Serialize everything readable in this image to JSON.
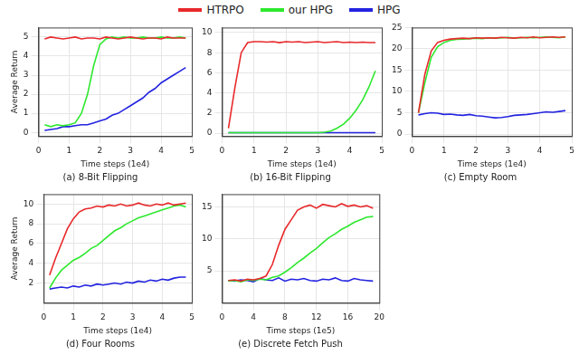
{
  "chart_data": [
    {
      "type": "line",
      "title": "(a) 8-Bit Flipping",
      "x_label": "Time steps (1e4)",
      "y_label": "Average Return",
      "legend": "top",
      "grid": true,
      "xlim": [
        0,
        5
      ],
      "xticks": [
        0,
        1,
        2,
        3,
        4,
        5
      ],
      "ylim": [
        -0.2,
        5.5
      ],
      "yticks": [
        0,
        1,
        2,
        3,
        4,
        5
      ],
      "x": [
        0.2,
        0.4,
        0.6,
        0.8,
        1.0,
        1.2,
        1.4,
        1.6,
        1.8,
        2.0,
        2.2,
        2.4,
        2.6,
        2.8,
        3.0,
        3.2,
        3.4,
        3.6,
        3.8,
        4.0,
        4.2,
        4.4,
        4.6,
        4.8
      ],
      "series": [
        {
          "name": "HTRPO",
          "color": "#e8292b",
          "values": [
            4.9,
            5.0,
            4.95,
            4.9,
            4.95,
            5.0,
            4.9,
            4.95,
            4.95,
            4.9,
            5.0,
            4.95,
            4.9,
            4.95,
            5.0,
            4.95,
            4.9,
            4.95,
            4.95,
            4.9,
            5.0,
            4.95,
            4.95,
            4.95
          ]
        },
        {
          "name": "our HPG",
          "color": "#2ee82e",
          "values": [
            0.4,
            0.3,
            0.4,
            0.35,
            0.4,
            0.5,
            1.0,
            2.0,
            3.5,
            4.6,
            4.9,
            5.0,
            4.95,
            5.0,
            4.95,
            4.95,
            5.0,
            4.95,
            4.95,
            5.0,
            4.95,
            4.95,
            5.0,
            4.95
          ]
        },
        {
          "name": "HPG",
          "color": "#2323e0",
          "values": [
            0.1,
            0.15,
            0.2,
            0.3,
            0.3,
            0.35,
            0.4,
            0.4,
            0.5,
            0.6,
            0.7,
            0.9,
            1.0,
            1.2,
            1.4,
            1.6,
            1.8,
            2.1,
            2.3,
            2.6,
            2.8,
            3.0,
            3.2,
            3.4
          ]
        }
      ]
    },
    {
      "type": "line",
      "title": "(b) 16-Bit Flipping",
      "x_label": "Time steps (1e4)",
      "grid": true,
      "xlim": [
        0,
        5
      ],
      "xticks": [
        0,
        1,
        2,
        3,
        4,
        5
      ],
      "ylim": [
        -0.3,
        10.5
      ],
      "yticks": [
        0,
        2,
        4,
        6,
        8,
        10
      ],
      "x": [
        0.2,
        0.4,
        0.6,
        0.8,
        1.0,
        1.2,
        1.4,
        1.6,
        1.8,
        2.0,
        2.2,
        2.4,
        2.6,
        2.8,
        3.0,
        3.2,
        3.4,
        3.6,
        3.8,
        4.0,
        4.2,
        4.4,
        4.6,
        4.8
      ],
      "series": [
        {
          "name": "HTRPO",
          "color": "#e8292b",
          "values": [
            0.5,
            4.5,
            8.0,
            9.0,
            9.1,
            9.1,
            9.05,
            9.1,
            9.0,
            9.1,
            9.05,
            9.1,
            9.0,
            9.05,
            9.1,
            9.0,
            9.05,
            9.1,
            9.0,
            9.05,
            9.0,
            9.05,
            9.0,
            9.0
          ]
        },
        {
          "name": "our HPG",
          "color": "#2ee82e",
          "values": [
            0.05,
            0.05,
            0.05,
            0.05,
            0.05,
            0.05,
            0.05,
            0.05,
            0.05,
            0.05,
            0.05,
            0.05,
            0.05,
            0.05,
            0.05,
            0.1,
            0.2,
            0.5,
            0.9,
            1.5,
            2.3,
            3.3,
            4.6,
            6.2
          ]
        },
        {
          "name": "HPG",
          "color": "#2323e0",
          "values": [
            0.05,
            0.05,
            0.05,
            0.05,
            0.05,
            0.05,
            0.05,
            0.05,
            0.05,
            0.05,
            0.05,
            0.05,
            0.05,
            0.05,
            0.05,
            0.05,
            0.05,
            0.05,
            0.05,
            0.05,
            0.05,
            0.05,
            0.05,
            0.05
          ]
        }
      ]
    },
    {
      "type": "line",
      "title": "(c) Empty Room",
      "x_label": "Time steps (1e4)",
      "grid": true,
      "xlim": [
        0,
        5
      ],
      "xticks": [
        0,
        1,
        2,
        3,
        4,
        5
      ],
      "ylim": [
        -0.5,
        25
      ],
      "yticks": [
        0,
        5,
        10,
        15,
        20,
        25
      ],
      "x": [
        0.2,
        0.4,
        0.6,
        0.8,
        1.0,
        1.2,
        1.4,
        1.6,
        1.8,
        2.0,
        2.2,
        2.4,
        2.6,
        2.8,
        3.0,
        3.2,
        3.4,
        3.6,
        3.8,
        4.0,
        4.2,
        4.4,
        4.6,
        4.8
      ],
      "series": [
        {
          "name": "HTRPO",
          "color": "#e8292b",
          "values": [
            5,
            14,
            19.5,
            21.5,
            22,
            22.3,
            22.4,
            22.5,
            22.4,
            22.6,
            22.5,
            22.6,
            22.5,
            22.7,
            22.6,
            22.5,
            22.7,
            22.6,
            22.8,
            22.6,
            22.7,
            22.8,
            22.7,
            22.8
          ]
        },
        {
          "name": "our HPG",
          "color": "#2ee82e",
          "values": [
            5,
            12,
            18,
            20.5,
            21.5,
            22,
            22.2,
            22.3,
            22.4,
            22.5,
            22.4,
            22.6,
            22.5,
            22.6,
            22.7,
            22.5,
            22.6,
            22.7,
            22.6,
            22.7,
            22.8,
            22.7,
            22.6,
            22.8
          ]
        },
        {
          "name": "HPG",
          "color": "#2323e0",
          "values": [
            4.5,
            4.8,
            5.0,
            4.9,
            4.6,
            4.7,
            4.5,
            4.4,
            4.6,
            4.3,
            4.2,
            4.0,
            3.8,
            3.9,
            4.1,
            4.4,
            4.5,
            4.6,
            4.8,
            5.0,
            5.2,
            5.1,
            5.3,
            5.5
          ]
        }
      ]
    },
    {
      "type": "line",
      "title": "(d) Four Rooms",
      "x_label": "Time steps (1e4)",
      "y_label": "Average Return",
      "grid": true,
      "xlim": [
        0,
        5
      ],
      "xticks": [
        0,
        1,
        2,
        3,
        4,
        5
      ],
      "ylim": [
        0,
        11
      ],
      "yticks": [
        2,
        4,
        6,
        8,
        10
      ],
      "x": [
        0.2,
        0.4,
        0.6,
        0.8,
        1.0,
        1.2,
        1.4,
        1.6,
        1.8,
        2.0,
        2.2,
        2.4,
        2.6,
        2.8,
        3.0,
        3.2,
        3.4,
        3.6,
        3.8,
        4.0,
        4.2,
        4.4,
        4.6,
        4.8
      ],
      "series": [
        {
          "name": "HTRPO",
          "color": "#e8292b",
          "values": [
            2.8,
            4.5,
            6.0,
            7.5,
            8.5,
            9.2,
            9.5,
            9.6,
            9.8,
            9.7,
            9.9,
            9.8,
            10.0,
            9.8,
            9.9,
            10.1,
            9.9,
            9.8,
            10.0,
            9.9,
            10.1,
            9.9,
            10.0,
            10.1
          ]
        },
        {
          "name": "our HPG",
          "color": "#2ee82e",
          "values": [
            1.5,
            2.5,
            3.3,
            3.8,
            4.3,
            4.6,
            5.0,
            5.5,
            5.8,
            6.3,
            6.8,
            7.3,
            7.6,
            8.0,
            8.3,
            8.6,
            8.8,
            9.0,
            9.2,
            9.4,
            9.6,
            9.8,
            9.9,
            9.7
          ]
        },
        {
          "name": "HPG",
          "color": "#2323e0",
          "values": [
            1.4,
            1.5,
            1.6,
            1.5,
            1.7,
            1.6,
            1.8,
            1.7,
            1.9,
            1.8,
            1.9,
            2.0,
            1.9,
            2.1,
            2.0,
            2.2,
            2.1,
            2.3,
            2.2,
            2.4,
            2.3,
            2.5,
            2.6,
            2.6
          ]
        }
      ]
    },
    {
      "type": "line",
      "title": "(e) Discrete Fetch Push",
      "x_label": "Time steps (1e5)",
      "grid": true,
      "xlim": [
        0,
        20
      ],
      "xticks": [
        0,
        4,
        8,
        12,
        16,
        20
      ],
      "ylim": [
        0,
        17
      ],
      "yticks": [
        5,
        10,
        15
      ],
      "x": [
        0.8,
        1.6,
        2.4,
        3.2,
        4.0,
        4.8,
        5.6,
        6.4,
        7.2,
        8.0,
        8.8,
        9.6,
        10.4,
        11.2,
        12.0,
        12.8,
        13.6,
        14.4,
        15.2,
        16.0,
        16.8,
        17.6,
        18.4,
        19.2
      ],
      "series": [
        {
          "name": "HTRPO",
          "color": "#e8292b",
          "values": [
            3.5,
            3.6,
            3.4,
            3.7,
            3.6,
            3.8,
            4.2,
            6.0,
            9.0,
            11.5,
            13.0,
            14.5,
            15.0,
            15.3,
            14.8,
            15.4,
            15.2,
            15.0,
            15.5,
            15.1,
            15.3,
            15.0,
            15.2,
            14.8
          ]
        },
        {
          "name": "our HPG",
          "color": "#2ee82e",
          "values": [
            3.4,
            3.5,
            3.3,
            3.6,
            3.5,
            3.7,
            3.6,
            4.0,
            4.2,
            4.8,
            5.5,
            6.3,
            7.0,
            7.8,
            8.5,
            9.4,
            10.2,
            10.8,
            11.5,
            12.0,
            12.6,
            13.0,
            13.4,
            13.5
          ]
        },
        {
          "name": "HPG",
          "color": "#2323e0",
          "values": [
            3.5,
            3.4,
            3.6,
            3.5,
            3.3,
            3.8,
            3.6,
            3.5,
            3.9,
            3.4,
            3.7,
            3.6,
            3.8,
            3.5,
            3.4,
            3.7,
            3.6,
            3.9,
            3.5,
            3.4,
            3.8,
            3.6,
            3.5,
            3.4
          ]
        }
      ]
    }
  ]
}
